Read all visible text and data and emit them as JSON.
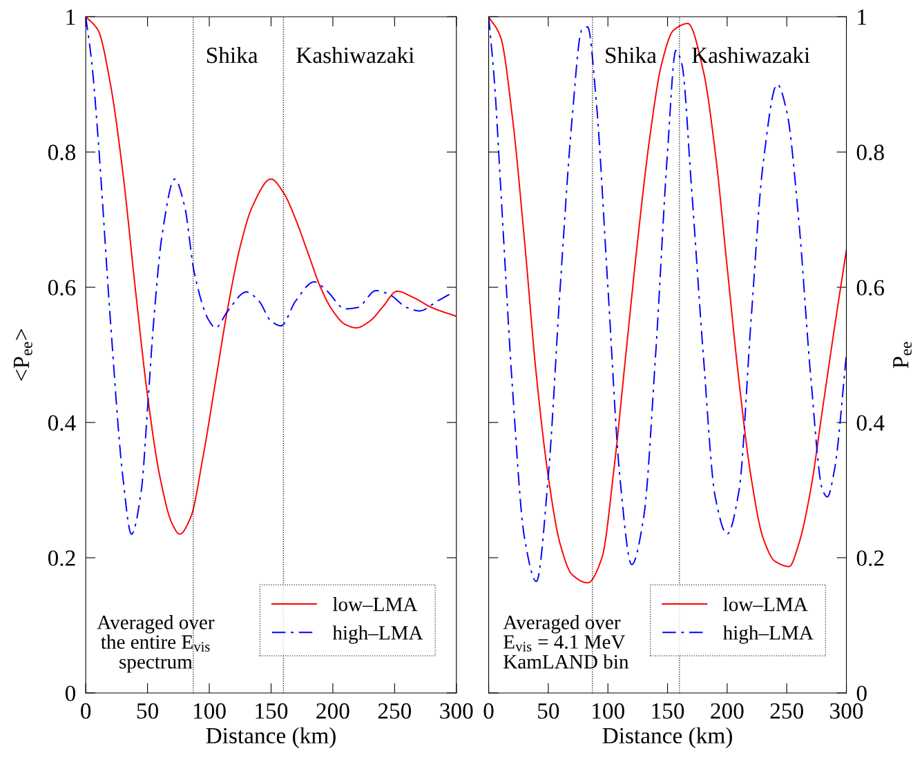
{
  "chart_data": [
    {
      "type": "line",
      "xlabel": "Distance (km)",
      "ylabel": "<P$_{ee}$>",
      "xlim": [
        0,
        300
      ],
      "xticks": [
        0,
        50,
        100,
        150,
        200,
        250,
        300
      ],
      "ylim": [
        0,
        1
      ],
      "yticks": [
        0,
        0.2,
        0.4,
        0.6,
        0.8,
        1
      ],
      "legend": "bottom right",
      "grid": false,
      "annotations": [
        "Averaged over\nthe entire E$_{vis}$\nspectrum"
      ],
      "ref_lines": [
        {
          "axis": "x",
          "value": 87,
          "label": "Shika",
          "line_style": "dotted",
          "color": "#000000"
        },
        {
          "axis": "x",
          "value": 160,
          "label": "Kashiwazaki",
          "line_style": "dotted",
          "color": "#000000"
        }
      ],
      "series": [
        {
          "name": "low–LMA",
          "color": "#ff0000",
          "line_style": "solid",
          "x": [
            0,
            10,
            20,
            30,
            40,
            50,
            60,
            70,
            76,
            85,
            95,
            105,
            115,
            125,
            135,
            150,
            160,
            170,
            180,
            190,
            200,
            210,
            219,
            230,
            240,
            252,
            265,
            280,
            300
          ],
          "values": [
            1,
            0.98,
            0.9,
            0.77,
            0.6,
            0.44,
            0.32,
            0.25,
            0.235,
            0.26,
            0.35,
            0.46,
            0.57,
            0.66,
            0.72,
            0.76,
            0.74,
            0.7,
            0.65,
            0.6,
            0.565,
            0.545,
            0.54,
            0.55,
            0.57,
            0.594,
            0.585,
            0.57,
            0.557
          ]
        },
        {
          "name": "high–LMA",
          "color": "#0000ff",
          "line_style": "dashdot",
          "x": [
            0,
            5,
            10,
            20,
            30,
            37,
            45,
            50,
            55,
            62,
            72,
            80,
            88,
            100,
            105,
            115,
            130,
            140,
            150,
            158,
            170,
            185,
            195,
            210,
            220,
            235,
            245,
            260,
            270,
            285,
            295
          ],
          "values": [
            1,
            0.93,
            0.82,
            0.55,
            0.32,
            0.235,
            0.3,
            0.42,
            0.55,
            0.68,
            0.76,
            0.72,
            0.62,
            0.55,
            0.54,
            0.565,
            0.593,
            0.58,
            0.55,
            0.543,
            0.58,
            0.608,
            0.595,
            0.568,
            0.57,
            0.595,
            0.59,
            0.57,
            0.565,
            0.58,
            0.59
          ]
        }
      ]
    },
    {
      "type": "line",
      "xlabel": "Distance (km)",
      "ylabel": "P$_{ee}$",
      "xlim": [
        0,
        300
      ],
      "xticks": [
        0,
        50,
        100,
        150,
        200,
        250,
        300
      ],
      "ylim": [
        0,
        1
      ],
      "yticks": [
        0,
        0.2,
        0.4,
        0.6,
        0.8,
        1
      ],
      "legend": "bottom right",
      "grid": false,
      "annotations": [
        "Averaged over\nE$_{vis}$ = 4.1 MeV\nKamLAND bin"
      ],
      "ref_lines": [
        {
          "axis": "x",
          "value": 87,
          "label": "Shika",
          "line_style": "dotted",
          "color": "#000000"
        },
        {
          "axis": "x",
          "value": 160,
          "label": "Kashiwazaki",
          "line_style": "dotted",
          "color": "#000000"
        }
      ],
      "series": [
        {
          "name": "low–LMA",
          "color": "#ff0000",
          "line_style": "solid",
          "x": [
            0,
            10,
            20,
            30,
            40,
            50,
            60,
            70,
            83,
            95,
            105,
            115,
            125,
            135,
            145,
            155,
            167,
            180,
            190,
            200,
            210,
            220,
            230,
            240,
            252,
            260,
            270,
            280,
            290,
            300
          ],
          "values": [
            1,
            0.97,
            0.85,
            0.67,
            0.47,
            0.32,
            0.22,
            0.175,
            0.163,
            0.2,
            0.33,
            0.5,
            0.67,
            0.82,
            0.93,
            0.98,
            0.99,
            0.92,
            0.8,
            0.63,
            0.46,
            0.32,
            0.23,
            0.195,
            0.187,
            0.22,
            0.3,
            0.42,
            0.54,
            0.655
          ]
        },
        {
          "name": "high–LMA",
          "color": "#0000ff",
          "line_style": "dashdot",
          "x": [
            0,
            5,
            10,
            20,
            30,
            40,
            50,
            60,
            70,
            78,
            83,
            90,
            100,
            110,
            120,
            130,
            140,
            150,
            157,
            162,
            170,
            180,
            190,
            200,
            210,
            220,
            230,
            242,
            250,
            260,
            270,
            280,
            284,
            290,
            300
          ],
          "values": [
            1,
            0.9,
            0.75,
            0.45,
            0.23,
            0.165,
            0.32,
            0.6,
            0.85,
            0.98,
            0.985,
            0.88,
            0.6,
            0.32,
            0.19,
            0.26,
            0.5,
            0.8,
            0.95,
            0.93,
            0.75,
            0.5,
            0.29,
            0.235,
            0.3,
            0.55,
            0.78,
            0.9,
            0.86,
            0.7,
            0.47,
            0.3,
            0.29,
            0.33,
            0.5
          ]
        }
      ]
    }
  ]
}
